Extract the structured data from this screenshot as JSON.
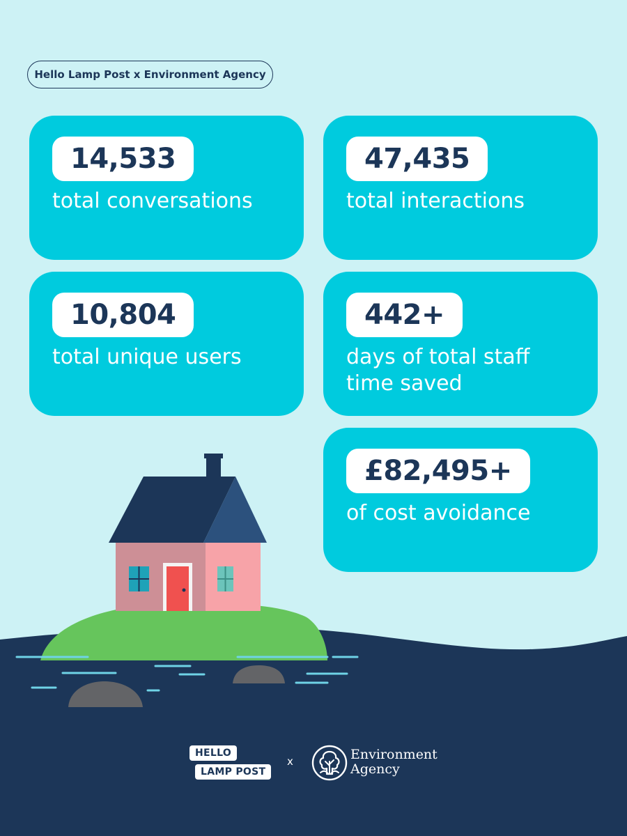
{
  "header": {
    "title": "Hello Lamp Post x Environment Agency"
  },
  "stats": [
    {
      "value": "14,533",
      "label": "total conversations"
    },
    {
      "value": "47,435",
      "label": "total interactions"
    },
    {
      "value": "10,804",
      "label": "total unique users"
    },
    {
      "value": "442+",
      "label": "days of total staff time saved"
    },
    {
      "value": "£82,495+",
      "label": "of cost avoidance"
    }
  ],
  "footer": {
    "partner_a_line1": "HELLO",
    "partner_a_line2": "LAMP POST",
    "separator": "x",
    "partner_b_line1": "Environment",
    "partner_b_line2": "Agency"
  },
  "colors": {
    "background": "#cdf2f5",
    "card": "#00cbde",
    "navy": "#1c3658",
    "badge": "#ffffff"
  }
}
